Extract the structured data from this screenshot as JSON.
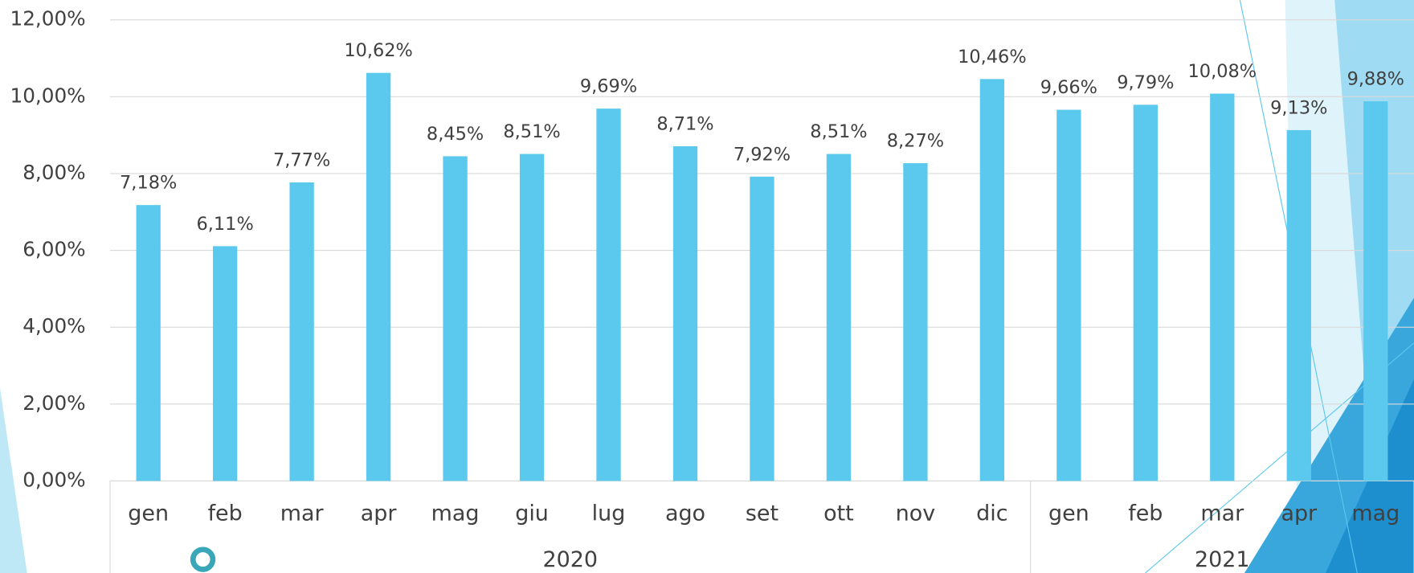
{
  "chart_data": {
    "type": "bar",
    "category_groups": [
      {
        "name": "2020",
        "categories": [
          "gen",
          "feb",
          "mar",
          "apr",
          "mag",
          "giu",
          "lug",
          "ago",
          "set",
          "ott",
          "nov",
          "dic"
        ]
      },
      {
        "name": "2021",
        "categories": [
          "gen",
          "feb",
          "mar",
          "apr",
          "mag"
        ]
      }
    ],
    "values": [
      7.18,
      6.11,
      7.77,
      10.62,
      8.45,
      8.51,
      9.69,
      8.71,
      7.92,
      8.51,
      8.27,
      10.46,
      9.66,
      9.79,
      10.08,
      9.13,
      9.88
    ],
    "value_labels": [
      "7,18%",
      "6,11%",
      "7,77%",
      "10,62%",
      "8,45%",
      "8,51%",
      "9,69%",
      "8,71%",
      "7,92%",
      "8,51%",
      "8,27%",
      "10,46%",
      "9,66%",
      "9,79%",
      "10,08%",
      "9,13%",
      "9,88%"
    ],
    "color": "#5bc8ee",
    "ylim": [
      0,
      12
    ],
    "yticks": [
      {
        "value": 0,
        "label": "0,00%"
      },
      {
        "value": 2,
        "label": "2,00%"
      },
      {
        "value": 4,
        "label": "4,00%"
      },
      {
        "value": 6,
        "label": "6,00%"
      },
      {
        "value": 8,
        "label": "8,00%"
      },
      {
        "value": 10,
        "label": "10,00%"
      },
      {
        "value": 12,
        "label": "12,00%"
      }
    ],
    "grid": true
  }
}
